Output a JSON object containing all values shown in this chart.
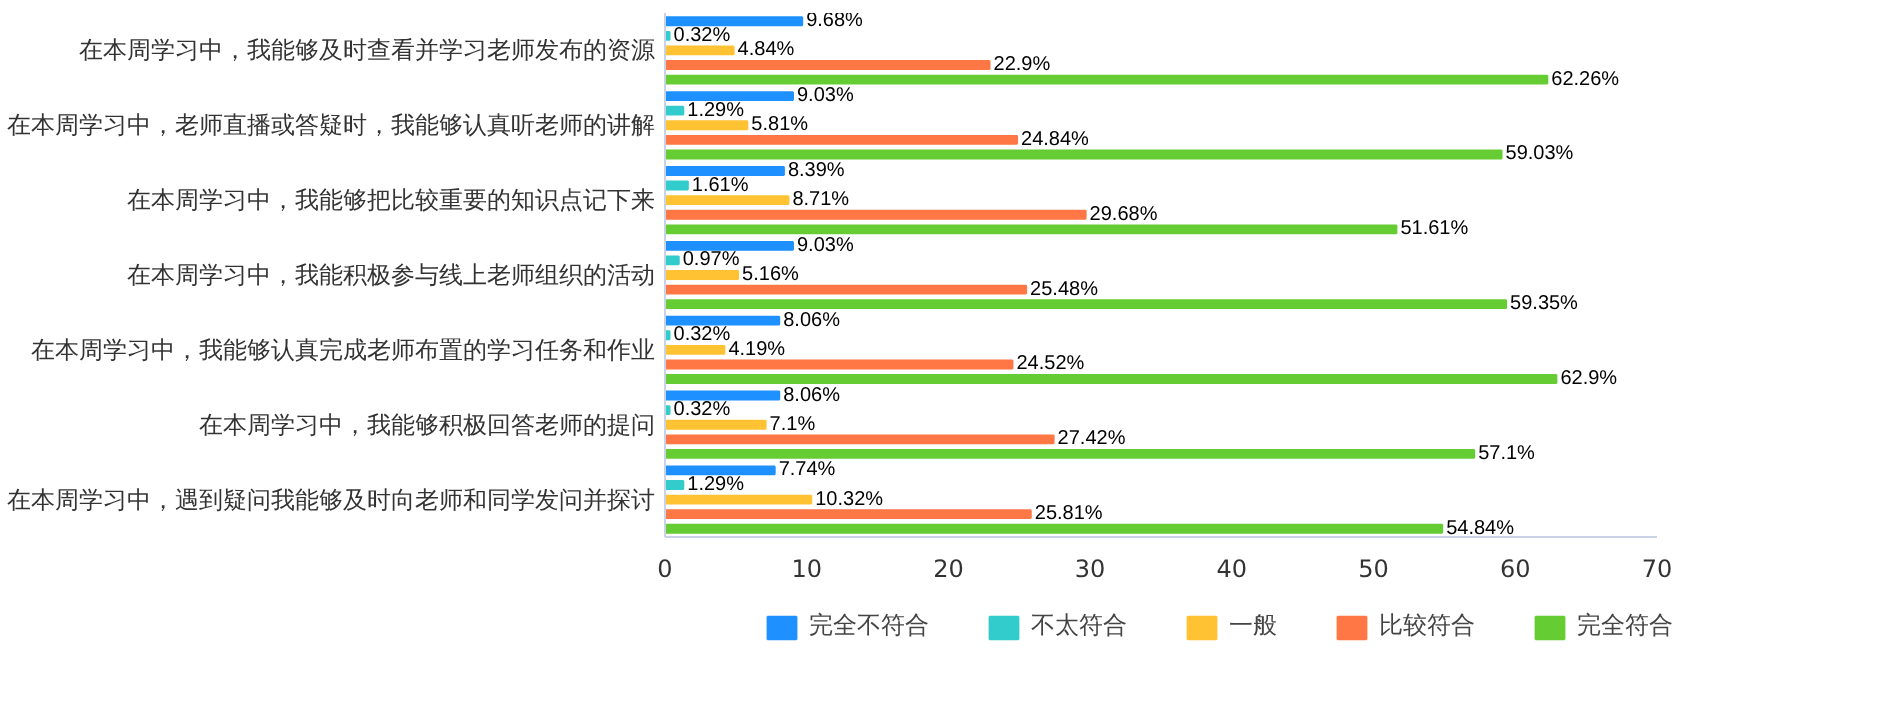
{
  "chart_data": {
    "type": "bar",
    "orientation": "horizontal",
    "categories": [
      "在本周学习中，我能够及时查看并学习老师发布的资源",
      "在本周学习中，老师直播或答疑时，我能够认真听老师的讲解",
      "在本周学习中，我能够把比较重要的知识点记下来",
      "在本周学习中，我能积极参与线上老师组织的活动",
      "在本周学习中，我能够认真完成老师布置的学习任务和作业",
      "在本周学习中，我能够积极回答老师的提问",
      "在本周学习中，遇到疑问我能够及时向老师和同学发问并探讨"
    ],
    "xlim": [
      0,
      70
    ],
    "xticks": [
      0,
      10,
      20,
      30,
      40,
      50,
      60,
      70
    ],
    "grid": false,
    "legend": "bottom",
    "series": [
      {
        "name": "完全不符合",
        "color": "#1e90ff",
        "values": [
          9.68,
          9.03,
          8.39,
          9.03,
          8.06,
          8.06,
          7.74
        ],
        "value_labels": [
          "9.68%",
          "9.03%",
          "8.39%",
          "9.03%",
          "8.06%",
          "8.06%",
          "7.74%"
        ]
      },
      {
        "name": "不太符合",
        "color": "#33cccc",
        "values": [
          0.32,
          1.29,
          1.61,
          0.97,
          0.32,
          0.32,
          1.29
        ],
        "value_labels": [
          "0.32%",
          "1.29%",
          "1.61%",
          "0.97%",
          "0.32%",
          "0.32%",
          "1.29%"
        ]
      },
      {
        "name": "一般",
        "color": "#ffc233",
        "values": [
          4.84,
          5.81,
          8.71,
          5.16,
          4.19,
          7.1,
          10.32
        ],
        "value_labels": [
          "4.84%",
          "5.81%",
          "8.71%",
          "5.16%",
          "4.19%",
          "7.1%",
          "10.32%"
        ]
      },
      {
        "name": "比较符合",
        "color": "#ff7744",
        "values": [
          22.9,
          24.84,
          29.68,
          25.48,
          24.52,
          27.42,
          25.81
        ],
        "value_labels": [
          "22.9%",
          "24.84%",
          "29.68%",
          "25.48%",
          "24.52%",
          "27.42%",
          "25.81%"
        ]
      },
      {
        "name": "完全符合",
        "color": "#66cc33",
        "values": [
          62.26,
          59.03,
          51.61,
          59.35,
          62.9,
          57.1,
          54.84
        ],
        "value_labels": [
          "62.26%",
          "59.03%",
          "51.61%",
          "59.35%",
          "62.9%",
          "57.1%",
          "54.84%"
        ]
      }
    ]
  }
}
